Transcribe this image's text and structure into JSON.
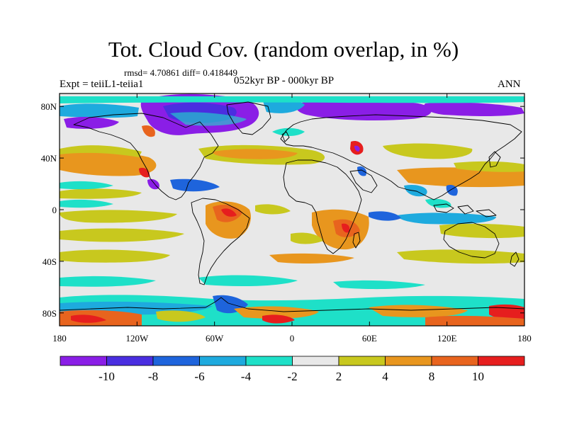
{
  "header": {
    "title": "Tot. Cloud Cov. (random overlap, in %)",
    "stats": "rmsd= 4.70861 diff= 0.418449",
    "experiment": "Expt = teiiL1-teiia1",
    "period": "052kyr BP - 000kyr BP",
    "season": "ANN"
  },
  "map": {
    "lon_ticks": [
      "180",
      "120W",
      "60W",
      "0",
      "60E",
      "120E",
      "180"
    ],
    "lat_ticks": [
      "80N",
      "40N",
      "0",
      "40S",
      "80S"
    ],
    "lat_values": [
      80,
      40,
      0,
      -40,
      -80
    ],
    "lon_range": [
      -180,
      180
    ],
    "lat_range": [
      -90,
      90
    ]
  },
  "colorbar": {
    "labels": [
      "-10",
      "-8",
      "-6",
      "-4",
      "-2",
      "2",
      "4",
      "8",
      "10"
    ],
    "colors": [
      "#8a1ee6",
      "#4a2ee0",
      "#1e64dc",
      "#1eaade",
      "#1ee0c8",
      "#e8e8e8",
      "#c8c81e",
      "#e8961e",
      "#e8641e",
      "#e61e1e"
    ]
  }
}
